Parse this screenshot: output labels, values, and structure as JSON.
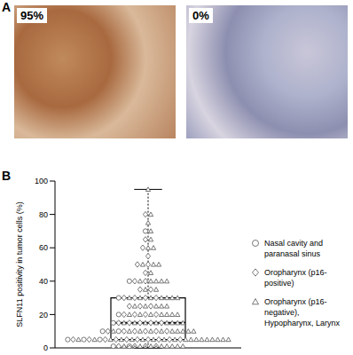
{
  "panel_labels": [
    "A",
    "B"
  ],
  "images": [
    {
      "label": "95%"
    },
    {
      "label": "0%"
    }
  ],
  "chart_data": {
    "type": "box_scatter",
    "y_label": "SLFN11 positivity in tumor cells (%)",
    "ylim": [
      0,
      100
    ],
    "yticks": [
      0,
      20,
      40,
      60,
      80,
      100
    ],
    "tick_labels": "y",
    "legend": "right",
    "box": {
      "min": 0,
      "q1": 5,
      "median": 15,
      "q3": 30,
      "max": 95,
      "color": "#000000"
    },
    "series": [
      {
        "name": "Nasal cavity and paranasal sinus",
        "marker": "circle",
        "color": "#555555",
        "values": [
          0,
          1,
          1,
          5,
          5,
          5,
          10,
          10,
          15,
          20,
          30,
          40,
          70
        ]
      },
      {
        "name": "Oropharynx (p16-positive)",
        "marker": "diamond",
        "color": "#555555",
        "values": [
          0,
          0,
          0,
          1,
          1,
          1,
          1,
          5,
          5,
          5,
          5,
          5,
          5,
          5,
          5,
          5,
          5,
          10,
          10,
          10,
          10,
          10,
          10,
          15,
          15,
          15,
          15,
          15,
          20,
          20,
          20,
          20,
          25,
          25,
          25,
          30,
          30,
          30,
          30,
          35,
          35,
          40,
          40,
          45,
          50,
          50,
          55,
          60,
          65,
          80
        ]
      },
      {
        "name": "Oropharynx (p16-negative), Hypopharynx, Larynx",
        "marker": "triangle",
        "color": "#555555",
        "values": [
          0,
          0,
          0,
          0,
          0,
          0,
          1,
          1,
          1,
          1,
          1,
          1,
          1,
          1,
          5,
          5,
          5,
          5,
          5,
          5,
          5,
          5,
          5,
          5,
          5,
          5,
          5,
          5,
          5,
          5,
          5,
          5,
          10,
          10,
          10,
          10,
          10,
          10,
          10,
          10,
          10,
          10,
          15,
          15,
          15,
          15,
          15,
          15,
          15,
          15,
          20,
          20,
          20,
          20,
          20,
          20,
          20,
          25,
          25,
          25,
          25,
          25,
          30,
          30,
          30,
          30,
          30,
          30,
          30,
          35,
          35,
          40,
          40,
          40,
          40,
          40,
          45,
          50,
          50,
          50,
          60,
          60,
          65,
          70,
          75,
          80,
          95
        ]
      }
    ]
  }
}
